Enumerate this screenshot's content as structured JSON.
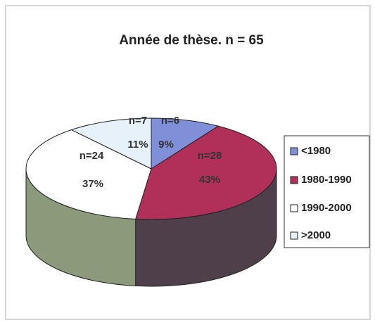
{
  "chart_data": {
    "type": "pie3d",
    "title": "Année de thèse. n = 65",
    "categories": [
      "<1980",
      "1980-1990",
      "1990-2000",
      ">2000"
    ],
    "values": [
      9,
      43,
      37,
      11
    ],
    "value_labels": [
      "9%",
      "43%",
      "37%",
      "11%"
    ],
    "count_labels": [
      "n=6",
      "n=28",
      "n=24",
      "n=7"
    ],
    "colors": [
      "#7f8fd8",
      "#b0305a",
      "#ffffff",
      "#e6f1fa"
    ],
    "side_colors": [
      "#4a5a9a",
      "#4e3f4b",
      "#8c9a7c",
      "#9aaab8"
    ],
    "legend": "right"
  }
}
